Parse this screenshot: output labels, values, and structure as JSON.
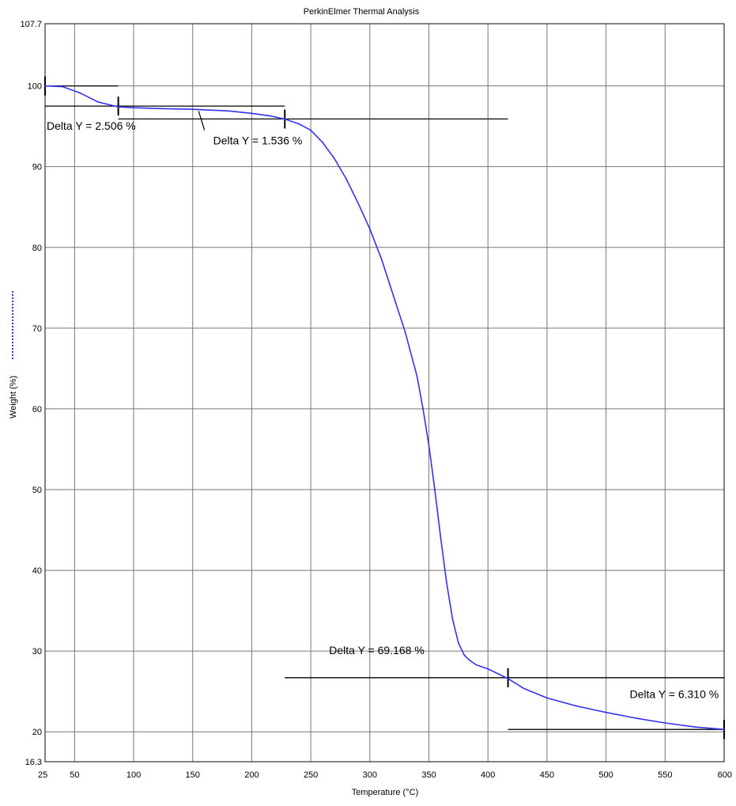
{
  "chart_data": {
    "type": "line",
    "title": "PerkinElmer Thermal Analysis",
    "xlabel": "Temperature (°C)",
    "ylabel": "Weight (%)",
    "xlim": [
      25,
      600
    ],
    "ylim": [
      16.3,
      107.7
    ],
    "x_ticks": [
      25,
      50,
      100,
      150,
      200,
      250,
      300,
      350,
      400,
      450,
      500,
      550,
      600
    ],
    "y_ticks": [
      16.3,
      20,
      30,
      40,
      50,
      60,
      70,
      80,
      90,
      100,
      107.7
    ],
    "grid": true,
    "legend": "left-side-vertical",
    "series_color": "#3333ee",
    "series": [
      {
        "x": [
          25,
          40,
          55,
          70,
          87,
          100,
          120,
          150,
          180,
          200,
          215,
          228,
          240,
          250,
          260,
          270,
          280,
          290,
          300,
          310,
          320,
          330,
          340,
          345,
          350,
          355,
          360,
          365,
          370,
          375,
          380,
          385,
          390,
          400,
          417,
          430,
          450,
          475,
          500,
          525,
          550,
          575,
          600
        ],
        "y": [
          100.0,
          99.9,
          99.1,
          98.0,
          97.4,
          97.3,
          97.2,
          97.1,
          96.9,
          96.6,
          96.3,
          95.9,
          95.3,
          94.5,
          93.0,
          91.0,
          88.5,
          85.5,
          82.3,
          78.5,
          74.0,
          69.5,
          64.0,
          60.0,
          55.5,
          50.0,
          44.0,
          38.5,
          34.0,
          31.0,
          29.5,
          28.8,
          28.3,
          27.8,
          26.6,
          25.4,
          24.2,
          23.2,
          22.4,
          21.7,
          21.1,
          20.6,
          20.3
        ]
      }
    ],
    "annotations": [
      {
        "text": "Delta Y = 2.506 %",
        "x1": 25,
        "x2": 87,
        "y_top": 100.0,
        "y_bottom": 97.5
      },
      {
        "text": "Delta Y = 1.536 %",
        "x1": 87,
        "x2": 228,
        "y_top": 97.5,
        "y_bottom": 95.9
      },
      {
        "text": "Delta Y = 69.168 %",
        "x1": 228,
        "x2": 417,
        "y_top": 95.9,
        "y_bottom": 26.7
      },
      {
        "text": "Delta Y = 6.310 %",
        "x1": 417,
        "x2": 600,
        "y_top": 26.7,
        "y_bottom": 20.3
      }
    ]
  }
}
